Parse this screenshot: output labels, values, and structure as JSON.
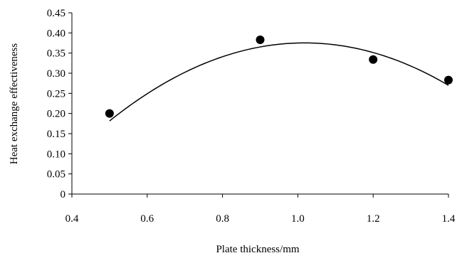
{
  "chart_data": {
    "type": "scatter",
    "title": "",
    "xlabel": "Plate thickness/mm",
    "ylabel": "Heat exchange effectiveness",
    "xlim": [
      0.4,
      1.4
    ],
    "ylim": [
      0,
      0.45
    ],
    "x_ticks": [
      "0.4",
      "0.6",
      "0.8",
      "1.0",
      "1.2",
      "1.4"
    ],
    "y_ticks": [
      "0",
      "0.05",
      "0.10",
      "0.15",
      "0.20",
      "0.25",
      "0.30",
      "0.35",
      "0.40",
      "0.45"
    ],
    "grid": false,
    "legend": "none",
    "series": [
      {
        "points": [
          {
            "x": 0.5,
            "y": 0.2
          },
          {
            "x": 0.9,
            "y": 0.383
          },
          {
            "x": 1.2,
            "y": 0.334
          },
          {
            "x": 1.4,
            "y": 0.283
          }
        ]
      }
    ],
    "trendline": {
      "type": "polynomial-2",
      "x_range": [
        0.5,
        1.4
      ],
      "coefficients": {
        "a": -0.722,
        "b": 1.47,
        "c": -0.373
      }
    },
    "colors": {
      "marker": "#000000",
      "line": "#000000",
      "axis": "#000000"
    }
  }
}
